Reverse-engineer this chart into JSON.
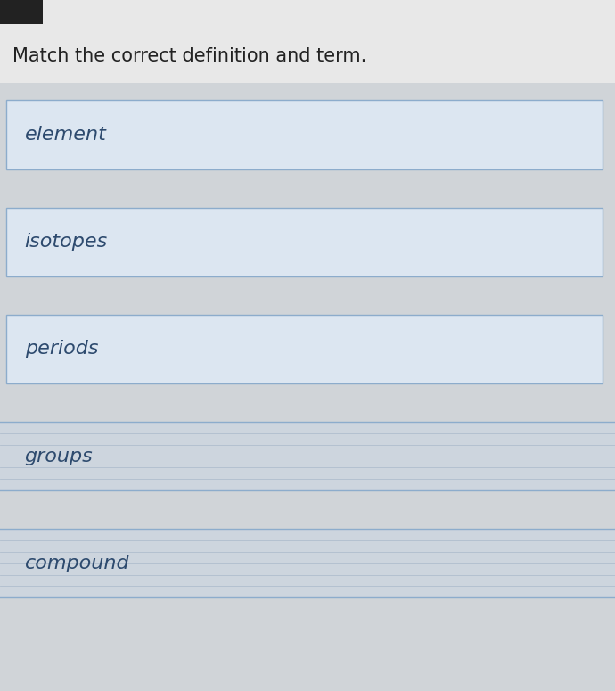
{
  "title": "Match the correct definition and term.",
  "title_fontsize": 15,
  "title_color": "#222222",
  "background_color": "#d0d4d8",
  "terms": [
    "element",
    "isotopes",
    "periods",
    "groups",
    "compound"
  ],
  "box_bg_color": "#dce6f1",
  "box_border_color": "#8caccc",
  "text_color": "#2d4a6e",
  "text_fontsize": 16,
  "stripe_bg_color": "#cdd5de",
  "stripe_line_color": "#b0bece",
  "header_bg": "#e8e8e8",
  "dark_bar_color": "#222222"
}
